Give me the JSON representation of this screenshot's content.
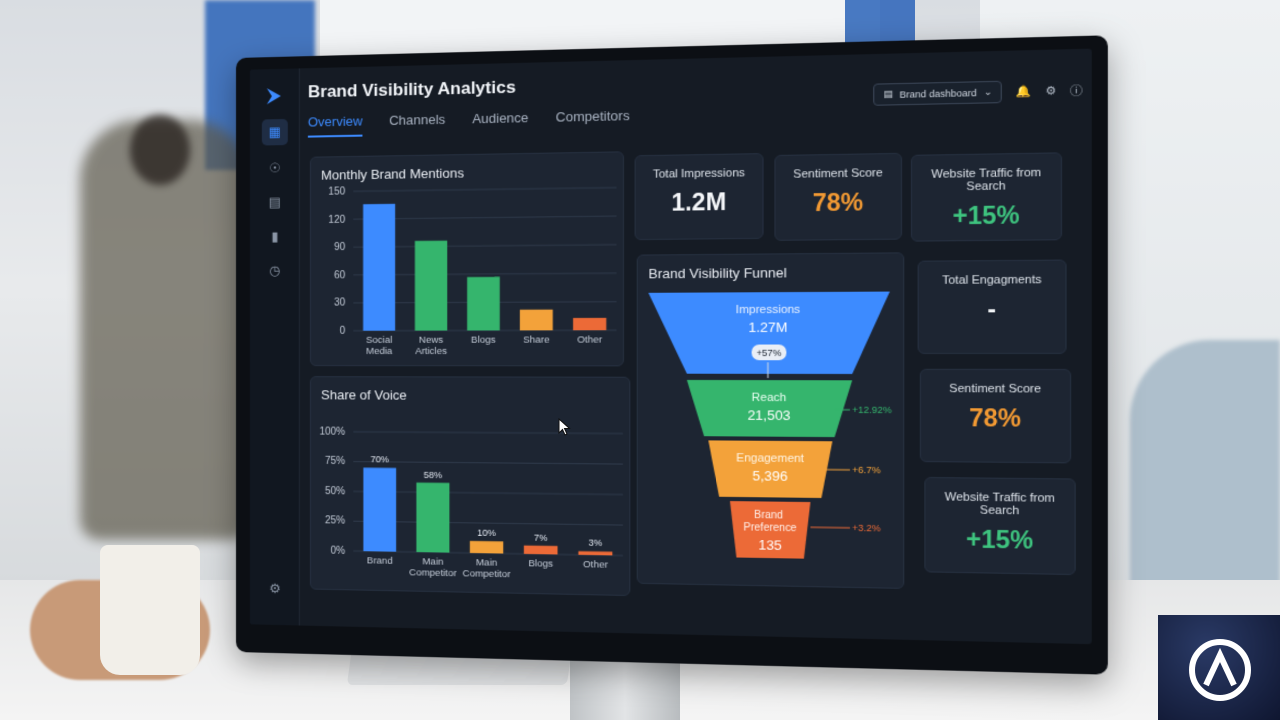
{
  "app": {
    "title": "Brand Visibility Analytics",
    "tabs": [
      "Overview",
      "Channels",
      "Audience",
      "Competitors"
    ],
    "active_tab": "Overview",
    "dashboard_select": "Brand dashboard"
  },
  "sidebar": {
    "icons": [
      "dashboard-icon",
      "branch-icon",
      "inbox-icon",
      "bar-chart-icon",
      "clock-icon",
      "settings-icon"
    ]
  },
  "kpis_top": [
    {
      "label": "Total Impressions",
      "value": "1.2M",
      "color": "#f4f6f9"
    },
    {
      "label": "Sentiment Score",
      "value": "78%",
      "color": "#f39a33"
    },
    {
      "label": "Website Traffic from Search",
      "value": "+15%",
      "color": "#3ec47f"
    }
  ],
  "kpis_right": [
    {
      "label": "Total Engagments",
      "value": "-",
      "color": "#f4f6f9"
    },
    {
      "label": "Sentiment Score",
      "value": "78%",
      "color": "#f39a33"
    },
    {
      "label": "Website Traffic from Search",
      "value": "+15%",
      "color": "#3ec47f"
    }
  ],
  "funnel": {
    "title": "Brand Visibility Funnel",
    "badge": "+57%",
    "stages": [
      {
        "name": "Impressions",
        "value": "1.27M",
        "color": "#3d8bff",
        "delta": ""
      },
      {
        "name": "Reach",
        "value": "21,503",
        "color": "#35b56d",
        "delta": "+12.92%"
      },
      {
        "name": "Engagement",
        "value": "5,396",
        "color": "#f3a23a",
        "delta": "+6.7%"
      },
      {
        "name": "Brand Preference",
        "value": "135",
        "color": "#ec6a37",
        "delta": "+3.2%"
      }
    ]
  },
  "chart_data": [
    {
      "type": "bar",
      "title": "Monthly Brand Mentions",
      "categories": [
        "Social Media",
        "News Articles",
        "Blogs",
        "Share",
        "Other"
      ],
      "values": [
        136,
        96,
        57,
        22,
        13
      ],
      "colors": [
        "#3d8bff",
        "#35b56d",
        "#35b56d",
        "#f3a23a",
        "#ec6a37"
      ],
      "yticks": [
        "150",
        "120",
        "90",
        "60",
        "30",
        "0"
      ],
      "ylim": [
        0,
        150
      ],
      "grid": true
    },
    {
      "type": "bar",
      "title": "Share of Voice",
      "categories": [
        "Brand",
        "Main Competitor",
        "Main Competitor",
        "Blogs",
        "Other"
      ],
      "values": [
        70,
        58,
        10,
        7,
        3
      ],
      "data_labels": [
        "70%",
        "58%",
        "10%",
        "7%",
        "3%"
      ],
      "colors": [
        "#3d8bff",
        "#35b56d",
        "#f3a23a",
        "#ec6a37",
        "#ec6a37"
      ],
      "yticks": [
        "100%",
        "75%",
        "50%",
        "25%",
        "0%"
      ],
      "ylim": [
        0,
        100
      ],
      "grid": true
    }
  ]
}
